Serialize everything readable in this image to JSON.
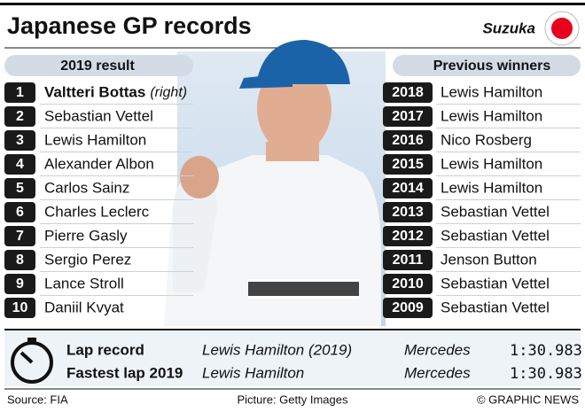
{
  "header": {
    "title": "Japanese GP records",
    "location": "Suzuka"
  },
  "result": {
    "heading": "2019 result",
    "rows": [
      {
        "pos": "1",
        "name": "Valtteri Bottas",
        "note": "(right)"
      },
      {
        "pos": "2",
        "name": "Sebastian Vettel"
      },
      {
        "pos": "3",
        "name": "Lewis Hamilton"
      },
      {
        "pos": "4",
        "name": "Alexander Albon"
      },
      {
        "pos": "5",
        "name": "Carlos Sainz"
      },
      {
        "pos": "6",
        "name": "Charles Leclerc"
      },
      {
        "pos": "7",
        "name": "Pierre Gasly"
      },
      {
        "pos": "8",
        "name": "Sergio Perez"
      },
      {
        "pos": "9",
        "name": "Lance Stroll"
      },
      {
        "pos": "10",
        "name": "Daniil Kvyat"
      }
    ]
  },
  "winners": {
    "heading": "Previous winners",
    "rows": [
      {
        "year": "2018",
        "name": "Lewis Hamilton"
      },
      {
        "year": "2017",
        "name": "Lewis Hamilton"
      },
      {
        "year": "2016",
        "name": "Nico Rosberg"
      },
      {
        "year": "2015",
        "name": "Lewis Hamilton"
      },
      {
        "year": "2014",
        "name": "Lewis Hamilton"
      },
      {
        "year": "2013",
        "name": "Sebastian Vettel"
      },
      {
        "year": "2012",
        "name": "Sebastian Vettel"
      },
      {
        "year": "2011",
        "name": "Jenson Button"
      },
      {
        "year": "2010",
        "name": "Sebastian Vettel"
      },
      {
        "year": "2009",
        "name": "Sebastian Vettel"
      }
    ]
  },
  "records": {
    "rows": [
      {
        "label": "Lap record",
        "driver": "Lewis Hamilton (2019)",
        "team": "Mercedes",
        "time": "1:30.983"
      },
      {
        "label": "Fastest lap 2019",
        "driver": "Lewis Hamilton",
        "team": "Mercedes",
        "time": "1:30.983"
      }
    ]
  },
  "footer": {
    "source": "Source: FIA",
    "picture": "Picture: Getty Images",
    "credit": "© GRAPHIC NEWS"
  }
}
